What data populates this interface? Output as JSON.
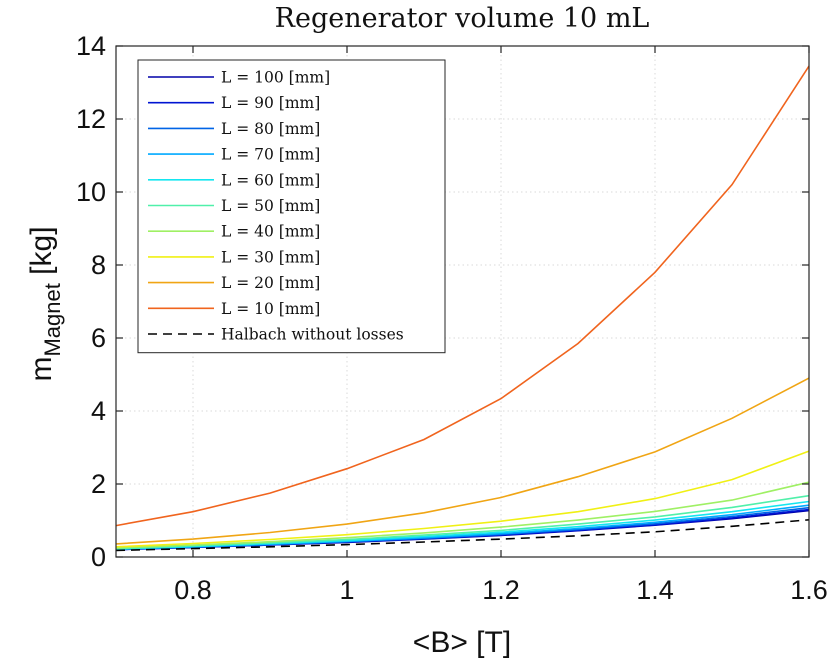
{
  "chart_data": {
    "type": "line",
    "title": "Regenerator volume 10 mL",
    "xlabel": "<B> [T]",
    "ylabel": "m",
    "ylabel_sub": "Magnet",
    "ylabel_unit": " [kg]",
    "xlim": [
      0.7,
      1.6
    ],
    "ylim": [
      0,
      14
    ],
    "xticks": [
      0.8,
      1,
      1.2,
      1.4,
      1.6
    ],
    "xtick_labels": [
      "0.8",
      "1",
      "1.2",
      "1.4",
      "1.6"
    ],
    "yticks": [
      0,
      2,
      4,
      6,
      8,
      10,
      12,
      14
    ],
    "ytick_labels": [
      "0",
      "2",
      "4",
      "6",
      "8",
      "10",
      "12",
      "14"
    ],
    "grid": true,
    "legend_position": "top-left",
    "x": [
      0.7,
      0.8,
      0.9,
      1.0,
      1.1,
      1.2,
      1.3,
      1.4,
      1.5,
      1.6
    ],
    "series": [
      {
        "name": "L = 100 [mm]",
        "color": "#0000a8",
        "dash": "solid",
        "values": [
          0.2,
          0.26,
          0.33,
          0.4,
          0.49,
          0.59,
          0.72,
          0.87,
          1.05,
          1.27
        ]
      },
      {
        "name": "L = 90 [mm]",
        "color": "#0014d2",
        "dash": "solid",
        "values": [
          0.2,
          0.26,
          0.33,
          0.41,
          0.5,
          0.6,
          0.73,
          0.88,
          1.07,
          1.3
        ]
      },
      {
        "name": "L = 80 [mm]",
        "color": "#0064e6",
        "dash": "solid",
        "values": [
          0.21,
          0.27,
          0.34,
          0.42,
          0.51,
          0.62,
          0.75,
          0.91,
          1.11,
          1.35
        ]
      },
      {
        "name": "L = 70 [mm]",
        "color": "#00aaff",
        "dash": "solid",
        "values": [
          0.21,
          0.28,
          0.35,
          0.43,
          0.53,
          0.64,
          0.78,
          0.95,
          1.16,
          1.42
        ]
      },
      {
        "name": "L = 60 [mm]",
        "color": "#14e6f0",
        "dash": "solid",
        "values": [
          0.22,
          0.29,
          0.37,
          0.45,
          0.56,
          0.68,
          0.83,
          1.01,
          1.24,
          1.52
        ]
      },
      {
        "name": "L = 50 [mm]",
        "color": "#50f0aa",
        "dash": "solid",
        "values": [
          0.23,
          0.31,
          0.39,
          0.48,
          0.6,
          0.73,
          0.9,
          1.1,
          1.36,
          1.68
        ]
      },
      {
        "name": "L = 40 [mm]",
        "color": "#9ff064",
        "dash": "solid",
        "values": [
          0.25,
          0.33,
          0.42,
          0.53,
          0.66,
          0.82,
          1.01,
          1.25,
          1.56,
          2.05
        ]
      },
      {
        "name": "L = 30 [mm]",
        "color": "#f0f014",
        "dash": "solid",
        "values": [
          0.28,
          0.37,
          0.48,
          0.61,
          0.78,
          0.98,
          1.24,
          1.6,
          2.12,
          2.9
        ]
      },
      {
        "name": "L = 20 [mm]",
        "color": "#f0a514",
        "dash": "solid",
        "values": [
          0.36,
          0.49,
          0.67,
          0.9,
          1.21,
          1.63,
          2.2,
          2.88,
          3.8,
          4.9
        ]
      },
      {
        "name": "L = 10 [mm]",
        "color": "#f0641e",
        "dash": "solid",
        "values": [
          0.86,
          1.24,
          1.75,
          2.42,
          3.22,
          4.34,
          5.85,
          7.8,
          10.2,
          13.45
        ]
      },
      {
        "name": "Halbach without losses",
        "color": "#000000",
        "dash": "dashed",
        "values": [
          0.18,
          0.23,
          0.28,
          0.34,
          0.41,
          0.49,
          0.58,
          0.69,
          0.84,
          1.02
        ]
      }
    ]
  }
}
